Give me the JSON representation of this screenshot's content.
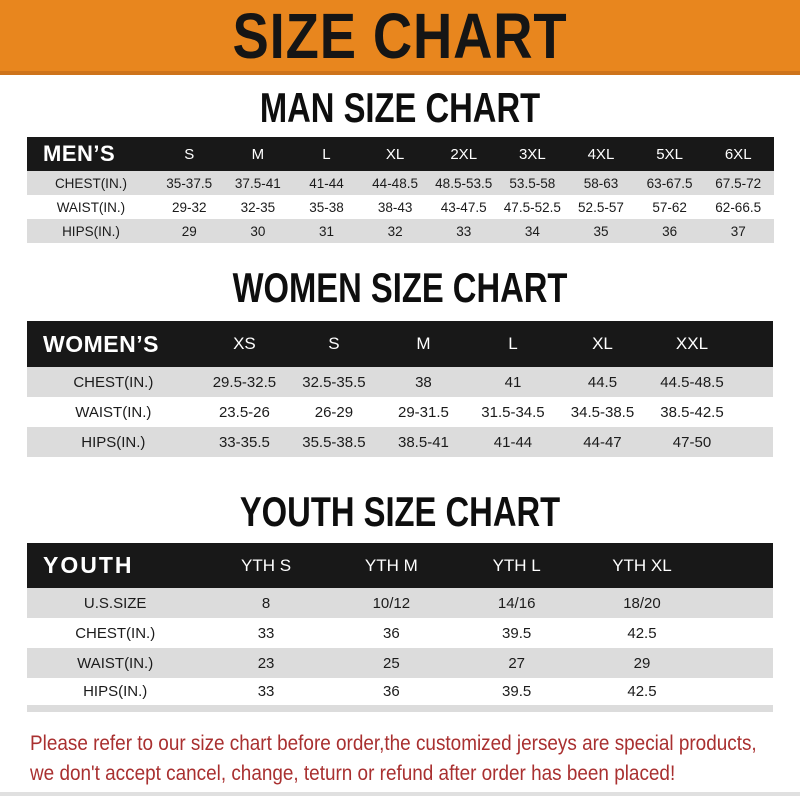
{
  "banner": {
    "title": "SIZE CHART",
    "bg_color": "#E8861E"
  },
  "sections": [
    {
      "heading": "MAN SIZE CHART",
      "table": {
        "label": "MEN’S",
        "columns": [
          "S",
          "M",
          "L",
          "XL",
          "2XL",
          "3XL",
          "4XL",
          "5XL",
          "6XL"
        ],
        "rows": [
          {
            "label": "CHEST(IN.)",
            "values": [
              "35-37.5",
              "37.5-41",
              "41-44",
              "44-48.5",
              "48.5-53.5",
              "53.5-58",
              "58-63",
              "63-67.5",
              "67.5-72"
            ]
          },
          {
            "label": "WAIST(IN.)",
            "values": [
              "29-32",
              "32-35",
              "35-38",
              "38-43",
              "43-47.5",
              "47.5-52.5",
              "52.5-57",
              "57-62",
              "62-66.5"
            ]
          },
          {
            "label": "HIPS(IN.)",
            "values": [
              "29",
              "30",
              "31",
              "32",
              "33",
              "34",
              "35",
              "36",
              "37"
            ]
          }
        ]
      }
    },
    {
      "heading": "WOMEN SIZE CHART",
      "table": {
        "label": "WOMEN’S",
        "columns": [
          "XS",
          "S",
          "M",
          "L",
          "XL",
          "XXL"
        ],
        "rows": [
          {
            "label": "CHEST(IN.)",
            "values": [
              "29.5-32.5",
              "32.5-35.5",
              "38",
              "41",
              "44.5",
              "44.5-48.5"
            ]
          },
          {
            "label": "WAIST(IN.)",
            "values": [
              "23.5-26",
              "26-29",
              "29-31.5",
              "31.5-34.5",
              "34.5-38.5",
              "38.5-42.5"
            ]
          },
          {
            "label": "HIPS(IN.)",
            "values": [
              "33-35.5",
              "35.5-38.5",
              "38.5-41",
              "41-44",
              "44-47",
              "47-50"
            ]
          }
        ]
      }
    },
    {
      "heading": "YOUTH SIZE CHART",
      "table": {
        "label": "YOUTH",
        "columns": [
          "YTH S",
          "YTH M",
          "YTH L",
          "YTH XL"
        ],
        "rows": [
          {
            "label": "U.S.SIZE",
            "values": [
              "8",
              "10/12",
              "14/16",
              "18/20"
            ]
          },
          {
            "label": "CHEST(IN.)",
            "values": [
              "33",
              "36",
              "39.5",
              "42.5"
            ]
          },
          {
            "label": "WAIST(IN.)",
            "values": [
              "23",
              "25",
              "27",
              "29"
            ]
          },
          {
            "label": "HIPS(IN.)",
            "values": [
              "33",
              "36",
              "39.5",
              "42.5"
            ]
          }
        ]
      }
    }
  ],
  "footer": {
    "text_color": "#A93030",
    "lines": [
      "Please refer to our size chart before order,the customized jerseys are special products,",
      "we don't accept cancel, change, teturn or refund after order has been placed!"
    ]
  }
}
